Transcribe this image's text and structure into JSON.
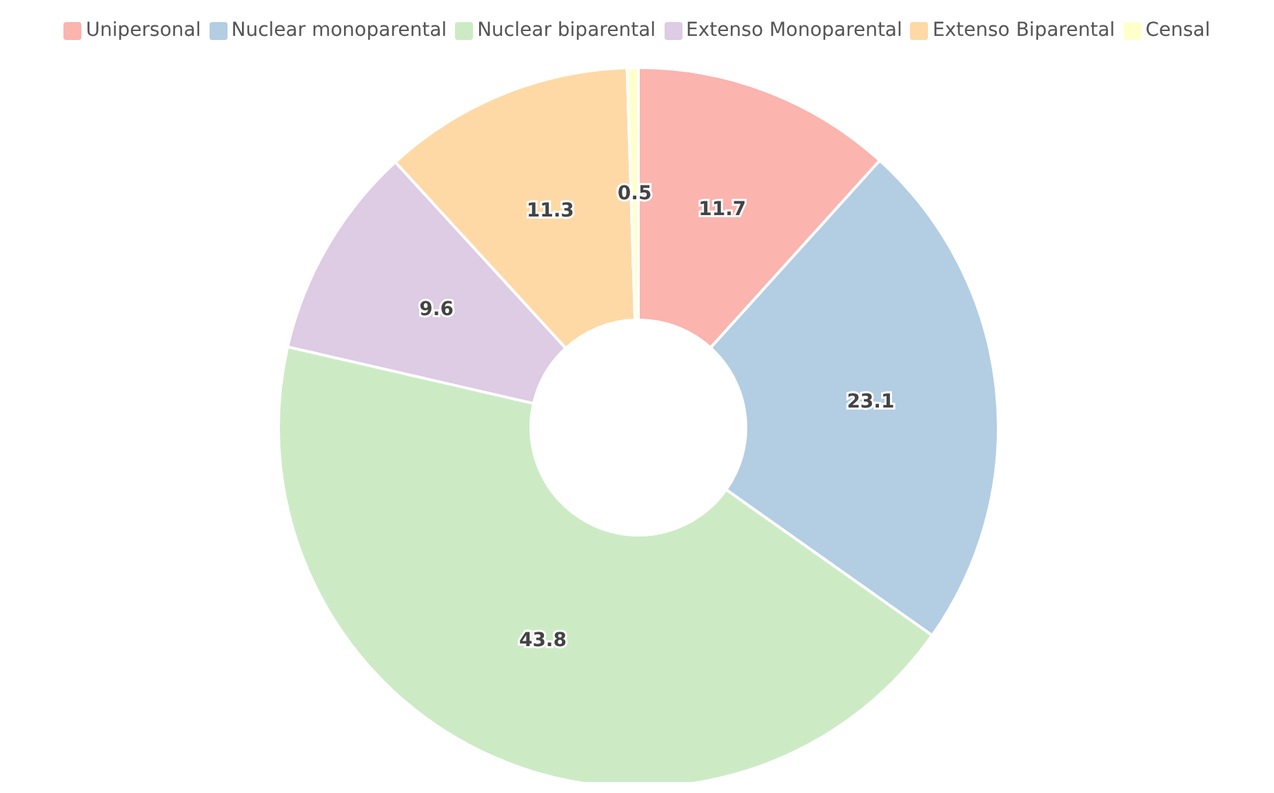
{
  "chart_data": {
    "type": "donut",
    "categories": [
      "Unipersonal",
      "Nuclear monoparental",
      "Nuclear biparental",
      "Extenso Monoparental",
      "Extenso Biparental",
      "Censal"
    ],
    "values": [
      11.7,
      23.1,
      43.8,
      9.6,
      11.3,
      0.5
    ],
    "colors": [
      "#fbb4ae",
      "#b3cde3",
      "#ccebc5",
      "#decbe4",
      "#fed9a6",
      "#ffffcc"
    ],
    "data_labels": true,
    "legend": "top"
  }
}
